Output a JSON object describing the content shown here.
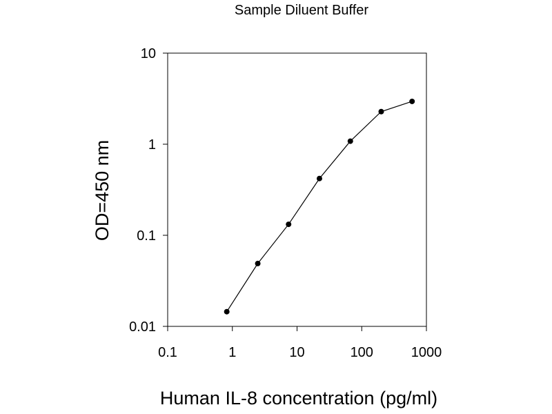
{
  "chart_data": {
    "type": "line",
    "title": "Sample Diluent Buffer",
    "xlabel": "Human IL-8 concentration (pg/ml)",
    "ylabel": "OD=450 nm",
    "xscale": "log",
    "yscale": "log",
    "xlim": [
      0.1,
      1000
    ],
    "ylim": [
      0.01,
      10
    ],
    "x_ticks": [
      0.1,
      1,
      10,
      100,
      1000
    ],
    "x_tick_labels": [
      "0.1",
      "1",
      "10",
      "100",
      "1000"
    ],
    "y_ticks": [
      0.01,
      0.1,
      1,
      10
    ],
    "y_tick_labels": [
      "0.01",
      "0.1",
      "1",
      "10"
    ],
    "grid": false,
    "legend": "none",
    "colors": {
      "line": "#000000",
      "marker": "#000000"
    },
    "series": [
      {
        "x": [
          0.82,
          2.47,
          7.4,
          22.2,
          66.7,
          200,
          600
        ],
        "y": [
          0.0145,
          0.049,
          0.132,
          0.42,
          1.08,
          2.28,
          2.95
        ]
      }
    ]
  }
}
